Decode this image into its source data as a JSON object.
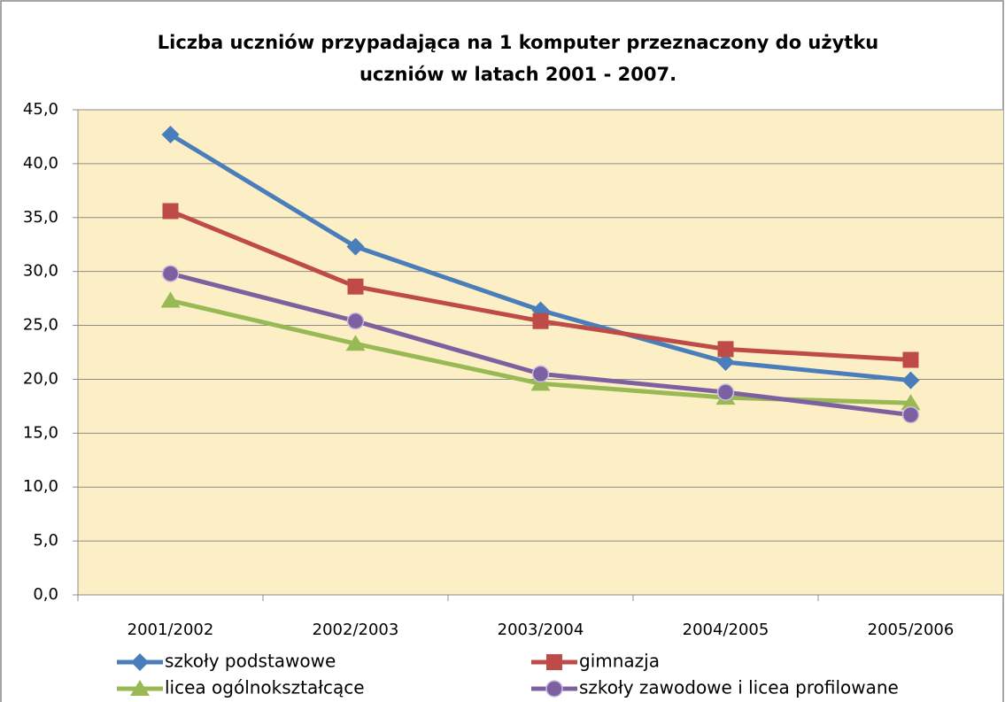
{
  "chart_data": {
    "type": "line",
    "title": [
      "Liczba uczniów przypadająca na 1 komputer przeznaczony do użytku",
      "uczniów  w latach 2001 - 2007."
    ],
    "categories": [
      "2001/2002",
      "2002/2003",
      "2003/2004",
      "2004/2005",
      "2005/2006"
    ],
    "series": [
      {
        "name": "szkoły podstawowe",
        "color": "#4a7ebb",
        "marker": "diamond",
        "values": [
          42.7,
          32.3,
          26.4,
          21.6,
          19.9
        ]
      },
      {
        "name": "gimnazja",
        "color": "#be4b48",
        "marker": "square",
        "values": [
          35.6,
          28.6,
          25.4,
          22.8,
          21.8
        ]
      },
      {
        "name": "licea ogólnokształcące",
        "color": "#98b954",
        "marker": "triangle",
        "values": [
          27.3,
          23.3,
          19.6,
          18.3,
          17.8
        ]
      },
      {
        "name": "szkoły zawodowe i licea profilowane",
        "color": "#7d60a0",
        "marker": "circle",
        "values": [
          29.8,
          25.4,
          20.5,
          18.8,
          16.7
        ]
      }
    ],
    "ylim": [
      0,
      45
    ],
    "yticks": [
      {
        "value": 0,
        "label": "0,0"
      },
      {
        "value": 5,
        "label": "5,0"
      },
      {
        "value": 10,
        "label": "10,0"
      },
      {
        "value": 15,
        "label": "15,0"
      },
      {
        "value": 20,
        "label": "20,0"
      },
      {
        "value": 25,
        "label": "25,0"
      },
      {
        "value": 30,
        "label": "30,0"
      },
      {
        "value": 35,
        "label": "35,0"
      },
      {
        "value": 40,
        "label": "40,0"
      },
      {
        "value": 45,
        "label": "45,0"
      }
    ],
    "grid": true,
    "plot_background": "#fcefc6",
    "legend": "bottom"
  }
}
